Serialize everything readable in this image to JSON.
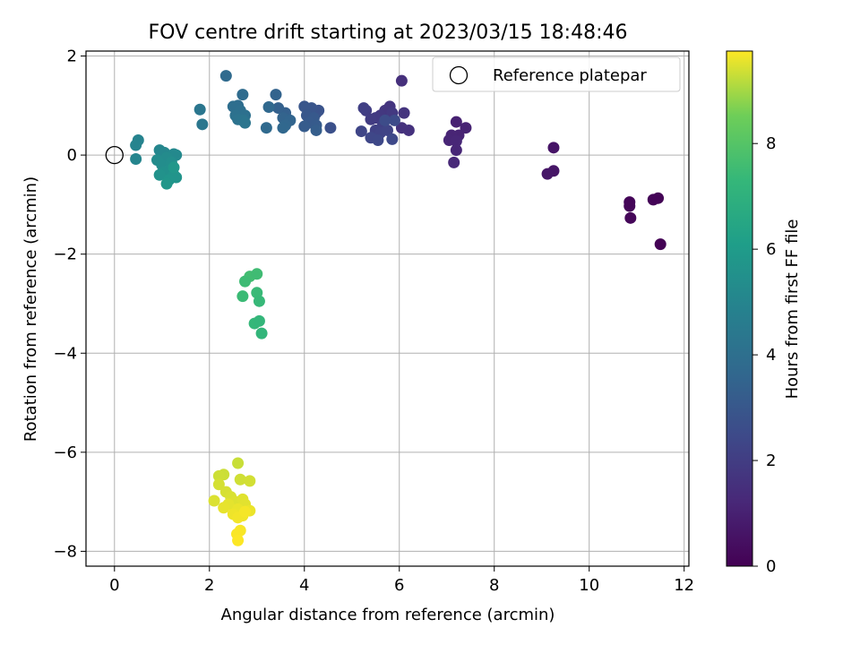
{
  "chart_data": {
    "type": "scatter",
    "title": "FOV centre drift starting at 2023/03/15 18:48:46",
    "xlabel": "Angular distance from reference (arcmin)",
    "ylabel": "Rotation from reference (arcmin)",
    "xlim": [
      -0.6,
      12.1
    ],
    "ylim": [
      -8.3,
      2.1
    ],
    "xticks": [
      0,
      2,
      4,
      6,
      8,
      10,
      12
    ],
    "xtick_labels": [
      "0",
      "2",
      "4",
      "6",
      "8",
      "10",
      "12"
    ],
    "yticks": [
      -8,
      -6,
      -4,
      -2,
      0,
      2
    ],
    "ytick_labels": [
      "−8",
      "−6",
      "−4",
      "−2",
      "0",
      "2"
    ],
    "grid": true,
    "legend": {
      "position": "top-right",
      "label": "Reference platepar"
    },
    "reference_point": {
      "x": 0,
      "y": 0
    },
    "colorbar": {
      "label": "Hours from first FF file",
      "colormap": "viridis",
      "range": [
        0,
        9.75
      ],
      "ticks": [
        0,
        2,
        4,
        6,
        8
      ],
      "tick_labels": [
        "0",
        "2",
        "4",
        "6",
        "8"
      ]
    },
    "series": [
      {
        "points": [
          [
            11.5,
            -1.8,
            0.05
          ],
          [
            11.45,
            -0.87,
            0.08
          ],
          [
            11.35,
            -0.9,
            0.1
          ],
          [
            10.85,
            -0.95,
            0.12
          ],
          [
            10.85,
            -1.03,
            0.15
          ],
          [
            10.87,
            -1.27,
            0.18
          ],
          [
            9.25,
            0.15,
            0.6
          ],
          [
            9.25,
            -0.32,
            0.62
          ],
          [
            9.12,
            -0.38,
            0.65
          ],
          [
            7.2,
            0.67,
            1.0
          ],
          [
            7.4,
            0.55,
            1.05
          ],
          [
            7.25,
            0.4,
            1.1
          ],
          [
            7.1,
            0.4,
            1.12
          ],
          [
            7.05,
            0.3,
            1.15
          ],
          [
            7.2,
            0.28,
            1.18
          ],
          [
            7.2,
            0.1,
            1.2
          ],
          [
            7.15,
            -0.15,
            1.25
          ],
          [
            6.05,
            1.5,
            1.5
          ],
          [
            6.2,
            0.5,
            1.55
          ],
          [
            6.05,
            0.55,
            1.6
          ],
          [
            6.1,
            0.85,
            1.65
          ],
          [
            5.8,
            0.98,
            1.7
          ],
          [
            5.7,
            0.9,
            1.75
          ],
          [
            5.6,
            0.8,
            1.8
          ],
          [
            5.85,
            0.85,
            1.85
          ],
          [
            5.5,
            0.75,
            1.9
          ],
          [
            5.4,
            0.72,
            1.95
          ],
          [
            5.3,
            0.9,
            2.0
          ],
          [
            5.25,
            0.95,
            2.05
          ],
          [
            5.65,
            0.6,
            2.1
          ],
          [
            5.5,
            0.5,
            2.15
          ],
          [
            5.6,
            0.45,
            2.2
          ],
          [
            5.75,
            0.5,
            2.25
          ],
          [
            5.2,
            0.48,
            2.3
          ],
          [
            5.4,
            0.35,
            2.35
          ],
          [
            5.55,
            0.3,
            2.4
          ],
          [
            5.85,
            0.32,
            2.45
          ],
          [
            5.9,
            0.7,
            2.5
          ],
          [
            5.7,
            0.7,
            2.55
          ],
          [
            4.55,
            0.55,
            2.7
          ],
          [
            4.25,
            0.85,
            2.8
          ],
          [
            4.3,
            0.9,
            2.85
          ],
          [
            4.15,
            0.95,
            2.9
          ],
          [
            4.0,
            0.98,
            2.95
          ],
          [
            4.05,
            0.8,
            3.0
          ],
          [
            4.2,
            0.75,
            3.05
          ],
          [
            4.1,
            0.65,
            3.1
          ],
          [
            4.25,
            0.6,
            3.15
          ],
          [
            4.0,
            0.58,
            3.2
          ],
          [
            4.25,
            0.5,
            3.25
          ],
          [
            3.6,
            0.85,
            3.35
          ],
          [
            3.45,
            0.95,
            3.4
          ],
          [
            3.4,
            1.22,
            3.45
          ],
          [
            3.55,
            0.75,
            3.5
          ],
          [
            3.7,
            0.7,
            3.55
          ],
          [
            3.6,
            0.6,
            3.6
          ],
          [
            3.55,
            0.55,
            3.65
          ],
          [
            3.25,
            0.97,
            3.7
          ],
          [
            3.2,
            0.55,
            3.75
          ],
          [
            2.35,
            1.6,
            3.8
          ],
          [
            2.7,
            1.22,
            3.85
          ],
          [
            2.6,
            1.0,
            3.9
          ],
          [
            2.5,
            0.98,
            3.95
          ],
          [
            2.65,
            0.9,
            4.0
          ],
          [
            2.75,
            0.8,
            4.05
          ],
          [
            2.55,
            0.8,
            4.1
          ],
          [
            2.6,
            0.72,
            4.15
          ],
          [
            2.7,
            0.7,
            4.2
          ],
          [
            2.75,
            0.65,
            4.25
          ],
          [
            1.8,
            0.92,
            4.3
          ],
          [
            1.85,
            0.62,
            4.35
          ],
          [
            0.5,
            0.3,
            4.9
          ],
          [
            0.45,
            0.2,
            4.95
          ],
          [
            0.45,
            -0.08,
            5.0
          ],
          [
            0.95,
            0.1,
            5.05
          ],
          [
            1.05,
            0.05,
            5.1
          ],
          [
            1.25,
            0.02,
            5.15
          ],
          [
            1.3,
            0.0,
            5.2
          ],
          [
            1.1,
            -0.05,
            5.25
          ],
          [
            0.9,
            -0.1,
            5.3
          ],
          [
            1.0,
            -0.2,
            5.35
          ],
          [
            1.2,
            -0.15,
            5.4
          ],
          [
            1.15,
            -0.3,
            5.45
          ],
          [
            1.05,
            -0.35,
            5.5
          ],
          [
            0.95,
            -0.4,
            5.55
          ],
          [
            1.25,
            -0.4,
            5.6
          ],
          [
            1.3,
            -0.45,
            5.65
          ],
          [
            1.15,
            -0.5,
            5.7
          ],
          [
            1.1,
            -0.58,
            5.75
          ],
          [
            1.25,
            -0.25,
            5.8
          ],
          [
            2.85,
            -2.45,
            7.6
          ],
          [
            3.0,
            -2.4,
            7.55
          ],
          [
            2.75,
            -2.55,
            7.5
          ],
          [
            2.7,
            -2.85,
            7.45
          ],
          [
            3.0,
            -2.78,
            7.4
          ],
          [
            3.05,
            -2.95,
            7.35
          ],
          [
            2.95,
            -3.4,
            7.3
          ],
          [
            3.05,
            -3.35,
            7.25
          ],
          [
            3.1,
            -3.6,
            7.2
          ],
          [
            2.6,
            -6.22,
            9.3
          ],
          [
            2.3,
            -6.45,
            9.32
          ],
          [
            2.2,
            -6.48,
            9.34
          ],
          [
            2.65,
            -6.55,
            9.36
          ],
          [
            2.85,
            -6.58,
            9.38
          ],
          [
            2.2,
            -6.65,
            9.4
          ],
          [
            2.35,
            -6.8,
            9.42
          ],
          [
            2.45,
            -6.9,
            9.44
          ],
          [
            2.1,
            -6.98,
            9.46
          ],
          [
            2.55,
            -7.0,
            9.48
          ],
          [
            2.7,
            -6.95,
            9.5
          ],
          [
            2.75,
            -7.05,
            9.52
          ],
          [
            2.4,
            -7.05,
            9.54
          ],
          [
            2.3,
            -7.12,
            9.56
          ],
          [
            2.6,
            -7.15,
            9.58
          ],
          [
            2.85,
            -7.18,
            9.6
          ],
          [
            2.5,
            -7.25,
            9.62
          ],
          [
            2.7,
            -7.28,
            9.64
          ],
          [
            2.6,
            -7.32,
            9.66
          ],
          [
            2.75,
            -7.2,
            9.68
          ],
          [
            2.65,
            -7.58,
            9.7
          ],
          [
            2.58,
            -7.65,
            9.72
          ],
          [
            2.6,
            -7.78,
            9.74
          ]
        ]
      }
    ]
  }
}
